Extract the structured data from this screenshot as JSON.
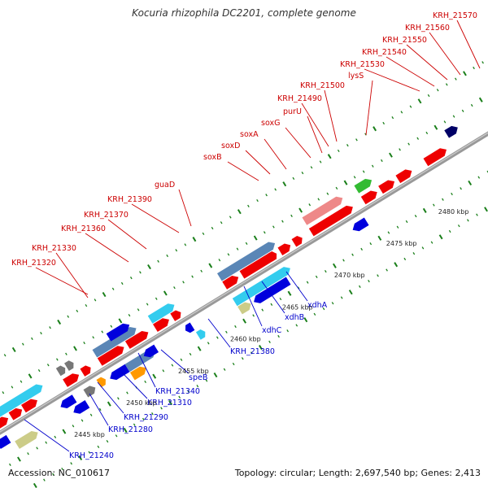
{
  "title": "Kocuria rhizophila DC2201, complete genome",
  "footer": {
    "accession": "Accession: NC_010617",
    "info": "Topology: circular; Length: 2,697,540 bp; Genes: 2,413"
  },
  "colors": {
    "backbone": "#999999",
    "tick": "#1a7f1a",
    "label_top": "#cc0000",
    "label_bottom": "#0000cc",
    "gene_red": "#ee0000",
    "gene_blue": "#0000dd",
    "gene_cyan": "#33ccee",
    "gene_steel": "#5a86b6",
    "gene_pink": "#ee8888",
    "gene_green": "#33bb33",
    "gene_orange": "#ff9900",
    "gene_gray": "#777777",
    "gene_olive": "#cccc88",
    "gene_navy": "#000066"
  },
  "scale_labels": [
    "2445 kbp",
    "2450 kbp",
    "2455 kbp",
    "2460 kbp",
    "2465 kbp",
    "2470 kbp",
    "2475 kbp",
    "2480 kbp"
  ],
  "top_labels": [
    "KRH_21320",
    "KRH_21330",
    "KRH_21360",
    "KRH_21370",
    "KRH_21390",
    "guaD",
    "soxB",
    "soxD",
    "soxA",
    "soxG",
    "purU",
    "KRH_21490",
    "KRH_21500",
    "lysS",
    "KRH_21530",
    "KRH_21540",
    "KRH_21550",
    "KRH_21560",
    "KRH_21570"
  ],
  "bottom_labels": [
    "xdhA",
    "xdhB",
    "xdhC",
    "KRH_21380",
    "speB",
    "KRH_21340",
    "KRH_21310",
    "KRH_21290",
    "KRH_21280",
    "KRH_21240"
  ]
}
